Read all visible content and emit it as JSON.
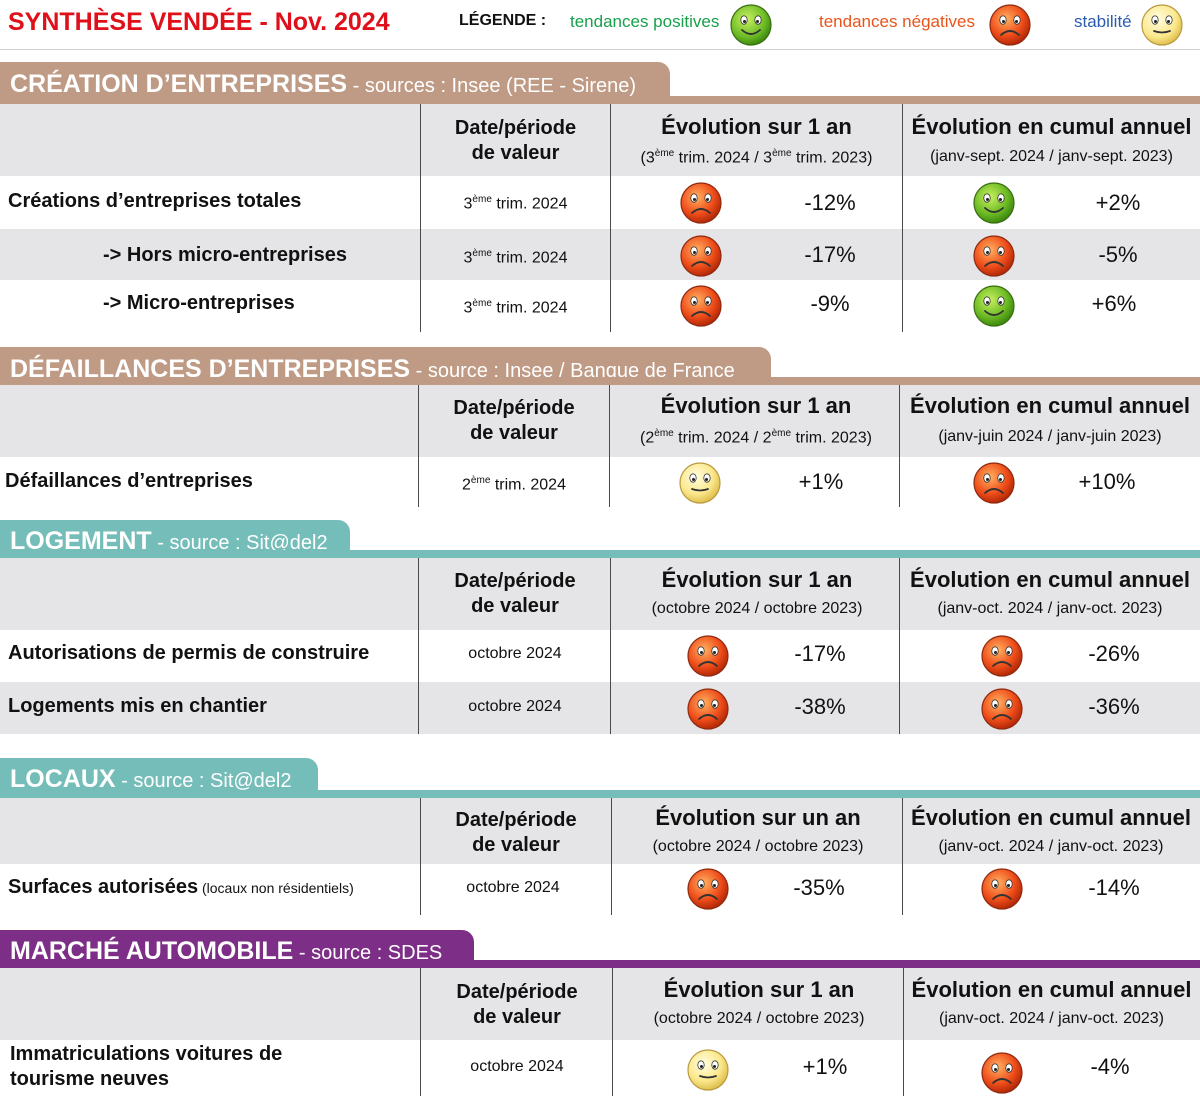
{
  "header": {
    "title": "SYNTHÈSE VENDÉE - Nov. 2024",
    "legend_label": "LÉGENDE :",
    "legend": [
      {
        "text": "tendances positives",
        "color": "#19a04b",
        "icon": "green-smiley-icon"
      },
      {
        "text": "tendances négatives",
        "color": "#e8541a",
        "icon": "red-frown-icon"
      },
      {
        "text": "stabilité",
        "color": "#2a5db0",
        "icon": "yellow-neutral-icon"
      }
    ]
  },
  "colors": {
    "brown": "#bf9a84",
    "teal": "#74bdb9",
    "purple": "#7d2e86",
    "header_bg": "#e5e5e8"
  },
  "sections": [
    {
      "title": "CRÉATION D’ENTREPRISES",
      "source": " - sources : Insee (REE - Sirene)",
      "date_header": [
        "Date/période",
        "de valeur"
      ],
      "year_header": "Évolution sur 1 an",
      "year_sub": [
        "(3",
        "ème",
        " trim. 2024 / 3",
        "ème",
        " trim. 2023)"
      ],
      "cumul_header": "Évolution en cumul annuel",
      "cumul_sub": "(janv-sept. 2024 / janv-sept. 2023)",
      "rows": [
        {
          "label": "Créations d’entreprises totales",
          "date": [
            " trim. 2024"
          ],
          "date_pre": "3",
          "date_sup": "ème",
          "year_icon": "red-frown-icon",
          "year_value": "-12%",
          "cumul_icon": "green-smiley-icon",
          "cumul_value": "+2%"
        },
        {
          "label": "-> Hors micro-entreprises",
          "date": [
            " trim. 2024"
          ],
          "date_pre": "3",
          "date_sup": "ème",
          "year_icon": "red-frown-icon",
          "year_value": "-17%",
          "cumul_icon": "red-frown-icon",
          "cumul_value": "-5%"
        },
        {
          "label": "-> Micro-entreprises",
          "date": [
            " trim. 2024"
          ],
          "date_pre": "3",
          "date_sup": "ème",
          "year_icon": "red-frown-icon",
          "year_value": "-9%",
          "cumul_icon": "green-smiley-icon",
          "cumul_value": "+6%"
        }
      ]
    },
    {
      "title": "DÉFAILLANCES D’ENTREPRISES",
      "source": " - source : Insee / Banque de France",
      "date_header": [
        "Date/période",
        "de valeur"
      ],
      "year_header": "Évolution sur 1 an",
      "year_sub": [
        "(2",
        "ème",
        " trim. 2024 / 2",
        "ème",
        " trim. 2023)"
      ],
      "cumul_header": "Évolution en cumul annuel",
      "cumul_sub": "(janv-juin 2024 / janv-juin 2023)",
      "rows": [
        {
          "label": "Défaillances d’entreprises",
          "date_pre": "2",
          "date_sup": "ème",
          "date": [
            " trim. 2024"
          ],
          "year_icon": "yellow-neutral-icon",
          "year_value": "+1%",
          "cumul_icon": "red-frown-icon",
          "cumul_value": "+10%"
        }
      ]
    },
    {
      "title": "LOGEMENT",
      "source": " - source : Sit@del2",
      "date_header": [
        "Date/période",
        "de valeur"
      ],
      "year_header": "Évolution sur 1 an",
      "year_sub_plain": "(octobre 2024 / octobre 2023)",
      "cumul_header": "Évolution en cumul annuel",
      "cumul_sub": "(janv-oct. 2024 / janv-oct. 2023)",
      "rows": [
        {
          "label": "Autorisations de permis de construire",
          "date_plain": "octobre 2024",
          "year_icon": "red-frown-icon",
          "year_value": "-17%",
          "cumul_icon": "red-frown-icon",
          "cumul_value": "-26%"
        },
        {
          "label": "Logements mis en chantier",
          "date_plain": "octobre 2024",
          "year_icon": "red-frown-icon",
          "year_value": "-38%",
          "cumul_icon": "red-frown-icon",
          "cumul_value": "-36%"
        }
      ]
    },
    {
      "title": "LOCAUX",
      "source": " - source : Sit@del2",
      "date_header": [
        "Date/période",
        "de valeur"
      ],
      "year_header": "Évolution sur un an",
      "year_sub_plain": "(octobre 2024 / octobre 2023)",
      "cumul_header": "Évolution en cumul annuel",
      "cumul_sub": "(janv-oct. 2024 / janv-oct. 2023)",
      "rows": [
        {
          "label": "Surfaces autorisées",
          "label_small": " (locaux non résidentiels)",
          "date_plain": "octobre 2024",
          "year_icon": "red-frown-icon",
          "year_value": "-35%",
          "cumul_icon": "red-frown-icon",
          "cumul_value": "-14%"
        }
      ]
    },
    {
      "title": "MARCHÉ AUTOMOBILE",
      "source": " - source : SDES",
      "date_header": [
        "Date/période",
        "de valeur"
      ],
      "year_header": "Évolution sur 1 an",
      "year_sub_plain": "(octobre 2024 / octobre 2023)",
      "cumul_header": "Évolution en cumul annuel",
      "cumul_sub": "(janv-oct. 2024 / janv-oct. 2023)",
      "rows": [
        {
          "label_lines": [
            "Immatriculations voitures de",
            "tourisme neuves"
          ],
          "date_plain": "octobre 2024",
          "year_icon": "yellow-neutral-icon",
          "year_value": "+1%",
          "cumul_icon": "red-frown-icon",
          "cumul_value": "-4%"
        }
      ]
    }
  ]
}
